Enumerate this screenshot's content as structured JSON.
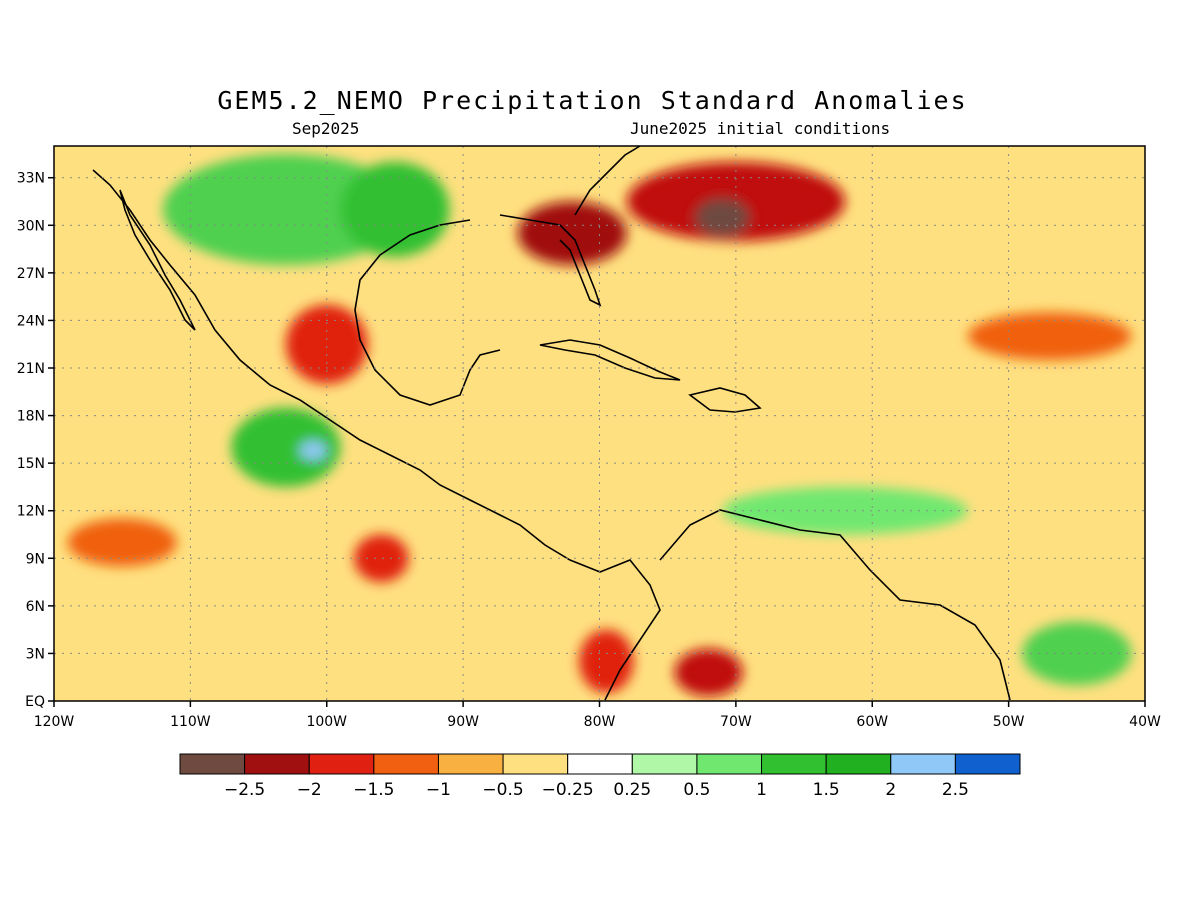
{
  "title": "GEM5.2_NEMO Precipitation Standard Anomalies",
  "subtitle_left": "Sep2025",
  "subtitle_right": "June2025 initial conditions",
  "map": {
    "lon_range": [
      -120,
      -40
    ],
    "lat_range": [
      0,
      35
    ],
    "lon_ticks": [
      {
        "value": -120,
        "label": "120W"
      },
      {
        "value": -110,
        "label": "110W"
      },
      {
        "value": -100,
        "label": "100W"
      },
      {
        "value": -90,
        "label": "90W"
      },
      {
        "value": -80,
        "label": "80W"
      },
      {
        "value": -70,
        "label": "70W"
      },
      {
        "value": -60,
        "label": "60W"
      },
      {
        "value": -50,
        "label": "50W"
      },
      {
        "value": -40,
        "label": "40W"
      }
    ],
    "lat_ticks": [
      {
        "value": 0,
        "label": "EQ"
      },
      {
        "value": 3,
        "label": "3N"
      },
      {
        "value": 6,
        "label": "6N"
      },
      {
        "value": 9,
        "label": "9N"
      },
      {
        "value": 12,
        "label": "12N"
      },
      {
        "value": 15,
        "label": "15N"
      },
      {
        "value": 18,
        "label": "18N"
      },
      {
        "value": 21,
        "label": "21N"
      },
      {
        "value": 24,
        "label": "24N"
      },
      {
        "value": 27,
        "label": "27N"
      },
      {
        "value": 30,
        "label": "30N"
      },
      {
        "value": 33,
        "label": "33N"
      }
    ],
    "anomaly_regions": [
      {
        "name": "wet-northern-mexico",
        "lon": -103,
        "lat": 31,
        "rx": 9,
        "ry": 3.5,
        "color": "#50d050"
      },
      {
        "name": "wet-texas",
        "lon": -95,
        "lat": 31,
        "rx": 4,
        "ry": 3,
        "color": "#30c030"
      },
      {
        "name": "dry-gulf-mexico",
        "lon": -100,
        "lat": 22.5,
        "rx": 3,
        "ry": 2.5,
        "color": "#e02010"
      },
      {
        "name": "dry-florida",
        "lon": -82,
        "lat": 29.5,
        "rx": 4,
        "ry": 2,
        "color": "#a01010"
      },
      {
        "name": "dry-atlantic-se-us",
        "lon": -70,
        "lat": 31.5,
        "rx": 8,
        "ry": 2.5,
        "color": "#c01010"
      },
      {
        "name": "dry-atlantic-core",
        "lon": -71,
        "lat": 30.5,
        "rx": 2,
        "ry": 1.2,
        "color": "#6e4a40"
      },
      {
        "name": "wet-southern-mexico",
        "lon": -103,
        "lat": 16,
        "rx": 4,
        "ry": 2.5,
        "color": "#30c030"
      },
      {
        "name": "wet-spot-mexico",
        "lon": -101,
        "lat": 15.8,
        "rx": 1,
        "ry": 0.6,
        "color": "#90c8f8"
      },
      {
        "name": "dry-east-pacific",
        "lon": -96,
        "lat": 9,
        "rx": 2,
        "ry": 1.5,
        "color": "#e02010"
      },
      {
        "name": "dry-pacific-west",
        "lon": -115,
        "lat": 10,
        "rx": 4,
        "ry": 1.5,
        "color": "#f06010"
      },
      {
        "name": "dry-colombia",
        "lon": -72,
        "lat": 1.8,
        "rx": 2.5,
        "ry": 1.5,
        "color": "#c01010"
      },
      {
        "name": "dry-panama",
        "lon": -79.5,
        "lat": 2.5,
        "rx": 2,
        "ry": 2,
        "color": "#e02010"
      },
      {
        "name": "wet-caribbean-band",
        "lon": -62,
        "lat": 12,
        "rx": 9,
        "ry": 1.5,
        "color": "#70e870"
      },
      {
        "name": "dry-atlantic-east",
        "lon": -47,
        "lat": 23,
        "rx": 6,
        "ry": 1.5,
        "color": "#f06010"
      },
      {
        "name": "wet-atlantic-spot",
        "lon": -45,
        "lat": 3,
        "rx": 4,
        "ry": 2,
        "color": "#50d050"
      }
    ]
  },
  "colorbar": {
    "colors": [
      "#6e4a40",
      "#a01010",
      "#e02010",
      "#f06010",
      "#f8b040",
      "#ffe080",
      "#ffffff",
      "#b0f8a8",
      "#70e870",
      "#30c030",
      "#20b020",
      "#90c8f8",
      "#1060d0"
    ],
    "labels": [
      "-2.5",
      "-2",
      "-1.5",
      "-1",
      "-0.5",
      "-0.25",
      "0.25",
      "0.5",
      "1",
      "1.5",
      "2",
      "2.5"
    ]
  }
}
